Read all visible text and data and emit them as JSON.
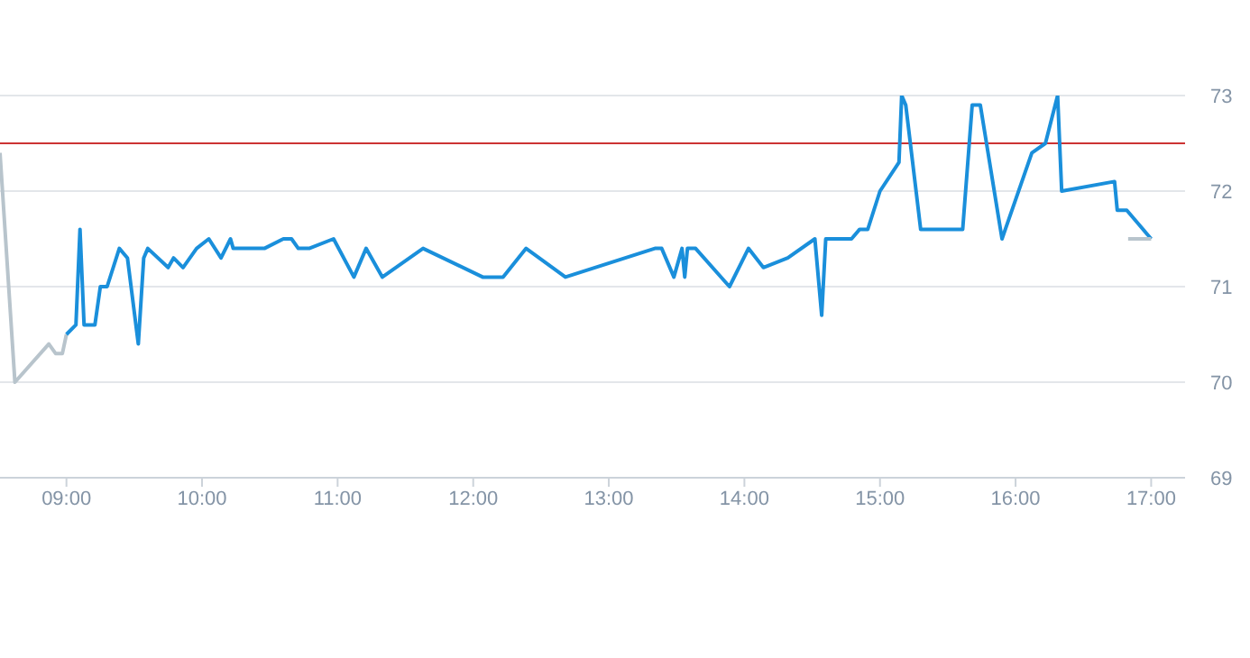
{
  "chart_data": {
    "type": "line",
    "xlim": [
      8.51,
      17.25
    ],
    "ylim": [
      69,
      73
    ],
    "xticks": [
      {
        "value": 9,
        "label": "09:00"
      },
      {
        "value": 10,
        "label": "10:00"
      },
      {
        "value": 11,
        "label": "11:00"
      },
      {
        "value": 12,
        "label": "12:00"
      },
      {
        "value": 13,
        "label": "13:00"
      },
      {
        "value": 14,
        "label": "14:00"
      },
      {
        "value": 15,
        "label": "15:00"
      },
      {
        "value": 16,
        "label": "16:00"
      },
      {
        "value": 17,
        "label": "17:00"
      }
    ],
    "yticks": [
      69,
      70,
      71,
      72,
      73
    ],
    "grid": "y",
    "ref_lines": [
      {
        "axis": "y",
        "value": 72.5,
        "color": "#cc3333"
      }
    ],
    "series": [
      {
        "color": "#b8c4cc",
        "x": [
          8.51,
          8.62,
          8.87,
          8.92,
          8.97,
          9.0
        ],
        "values": [
          72.4,
          70.0,
          70.4,
          70.3,
          70.3,
          70.5
        ]
      },
      {
        "color": "#1a8fdb",
        "x": [
          9.0,
          9.07,
          9.1,
          9.13,
          9.21,
          9.25,
          9.3,
          9.39,
          9.45,
          9.53,
          9.57,
          9.6,
          9.75,
          9.79,
          9.86,
          9.96,
          10.05,
          10.14,
          10.21,
          10.23,
          10.46,
          10.6,
          10.66,
          10.71,
          10.79,
          10.97,
          11.12,
          11.21,
          11.33,
          11.63,
          12.07,
          12.22,
          12.39,
          12.68,
          13.34,
          13.39,
          13.48,
          13.54,
          13.56,
          13.58,
          13.64,
          13.89,
          14.03,
          14.14,
          14.32,
          14.52,
          14.57,
          14.6,
          14.79,
          14.85,
          14.91,
          15.0,
          15.14,
          15.16,
          15.19,
          15.3,
          15.61,
          15.68,
          15.74,
          15.9,
          16.12,
          16.22,
          16.31,
          16.34,
          16.73,
          16.75,
          16.82,
          17.0
        ],
        "values": [
          70.5,
          70.6,
          71.6,
          70.6,
          70.6,
          71.0,
          71.0,
          71.4,
          71.3,
          70.4,
          71.3,
          71.4,
          71.2,
          71.3,
          71.2,
          71.4,
          71.5,
          71.3,
          71.5,
          71.4,
          71.4,
          71.5,
          71.5,
          71.4,
          71.4,
          71.5,
          71.1,
          71.4,
          71.1,
          71.4,
          71.1,
          71.1,
          71.4,
          71.1,
          71.4,
          71.4,
          71.1,
          71.4,
          71.1,
          71.4,
          71.4,
          71.0,
          71.4,
          71.2,
          71.3,
          71.5,
          70.7,
          71.5,
          71.5,
          71.6,
          71.6,
          72.0,
          72.3,
          73.0,
          72.9,
          71.6,
          71.6,
          72.9,
          72.9,
          71.5,
          72.4,
          72.5,
          73.0,
          72.0,
          72.1,
          71.8,
          71.8,
          71.5
        ]
      },
      {
        "color": "#b8c4cc",
        "x": [
          16.83,
          17.0
        ],
        "values": [
          71.5,
          71.5
        ]
      }
    ]
  }
}
